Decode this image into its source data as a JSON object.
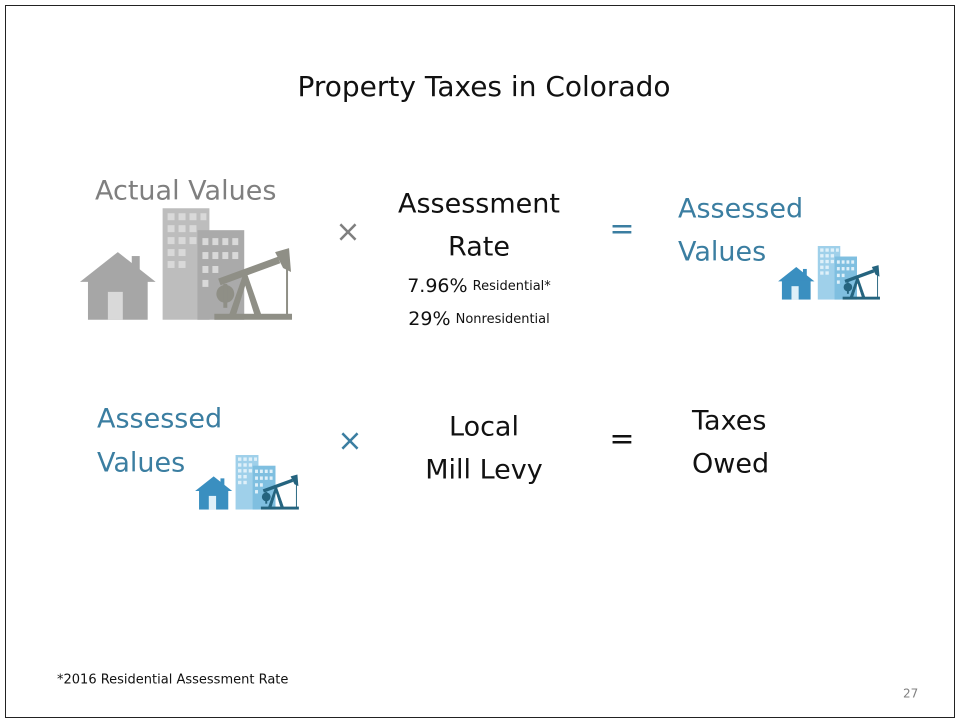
{
  "title": "Property Taxes in Colorado",
  "row1": {
    "left": "Actual Values",
    "operator": "×",
    "middle": [
      "Assessment",
      "Rate"
    ],
    "rates": [
      {
        "value": "7.96%",
        "label": "Residential*"
      },
      {
        "value": "29%",
        "label": "Nonresidential"
      }
    ],
    "equals": "=",
    "right": [
      "Assessed",
      "Values"
    ]
  },
  "row2": {
    "left": [
      "Assessed",
      "Values"
    ],
    "operator": "×",
    "middle": [
      "Local",
      "Mill Levy"
    ],
    "equals": "=",
    "right": [
      "Taxes",
      "Owed"
    ]
  },
  "footnote": "*2016 Residential Assessment Rate",
  "page_number": "27"
}
